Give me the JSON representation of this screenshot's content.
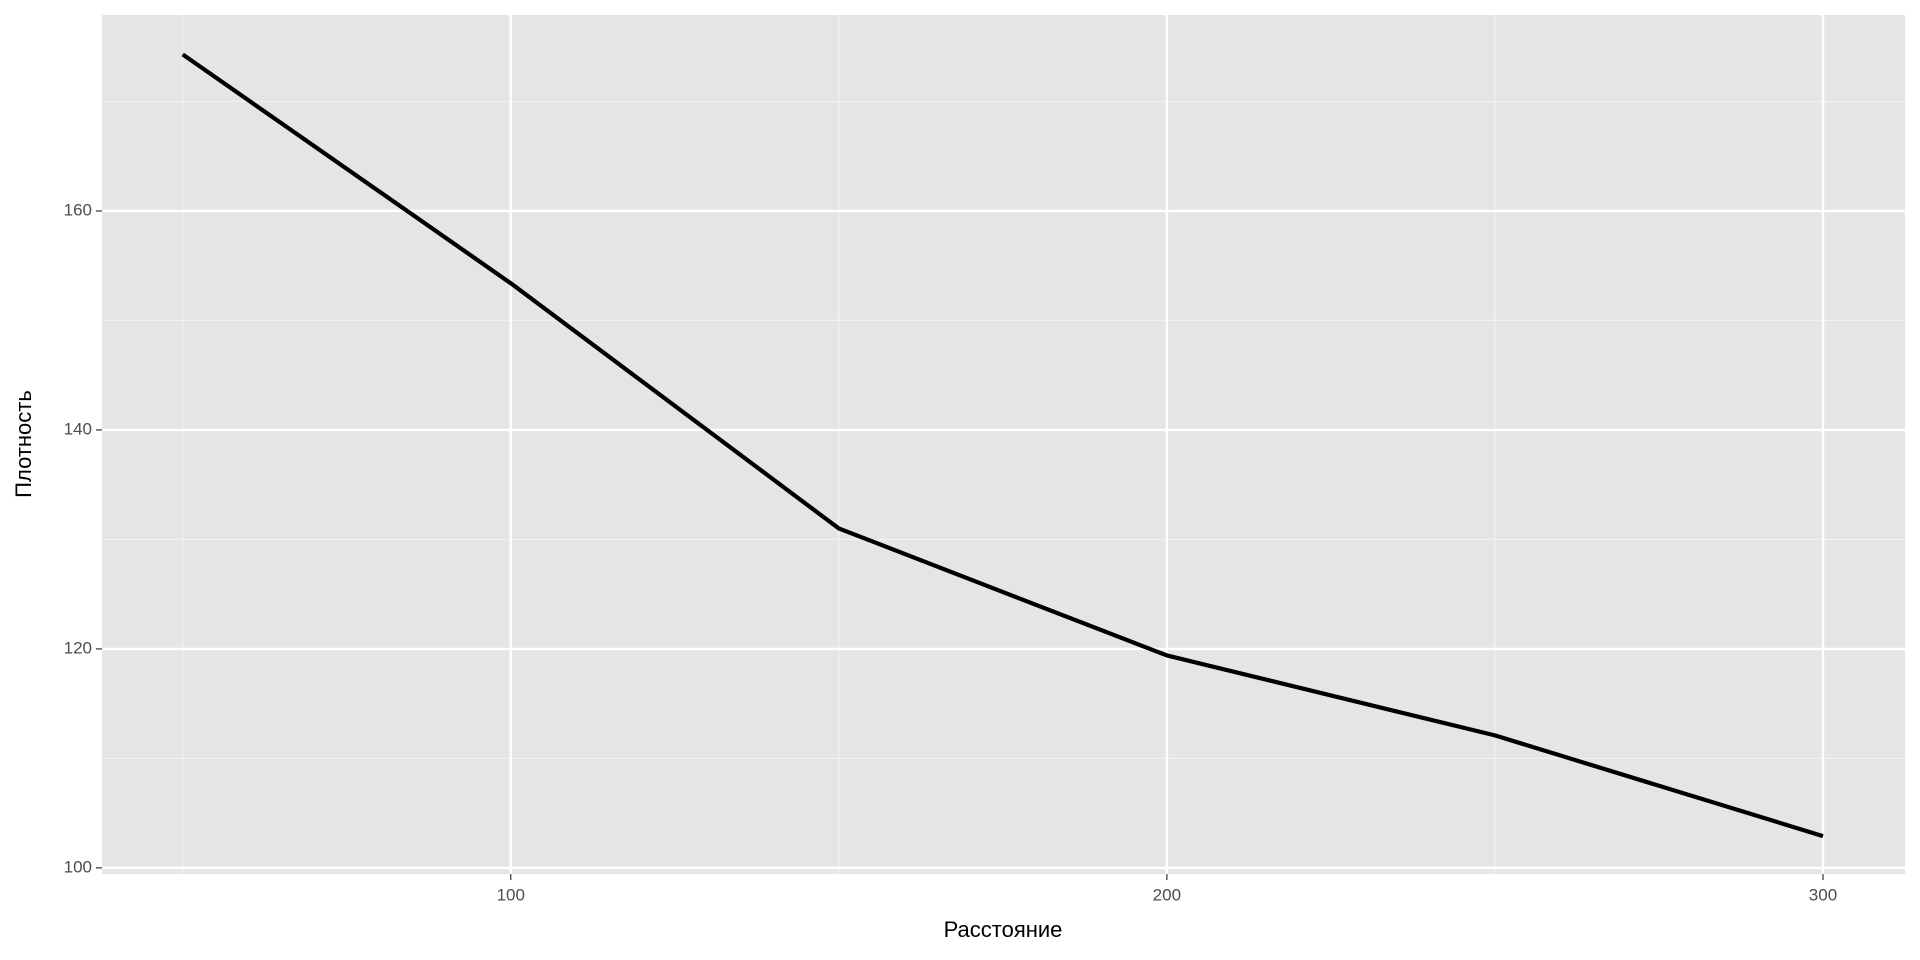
{
  "chart_data": {
    "type": "line",
    "x_label": "Расстояние",
    "y_label": "Плотность",
    "x": [
      50,
      100,
      150,
      200,
      250,
      300
    ],
    "series": [
      {
        "color": "#000000",
        "values": [
          174.3,
          153.4,
          131,
          119.4,
          112.1,
          102.9
        ]
      }
    ],
    "xlim": [
      37.7,
      312.5
    ],
    "xticks": [
      100,
      200,
      300
    ],
    "xminor": [
      50,
      150,
      250
    ],
    "ylim": [
      99.44,
      177.9
    ],
    "yticks": [
      100,
      120,
      140,
      160
    ],
    "yminor": [
      110,
      130,
      150,
      170
    ],
    "grid": true
  }
}
